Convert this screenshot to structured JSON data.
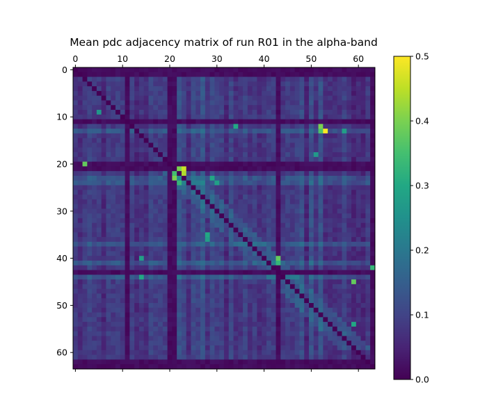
{
  "chart_data": {
    "type": "heatmap",
    "title": "Mean pdc adjacency matrix of run R01 in the alpha-band",
    "xlabel": "",
    "ylabel": "",
    "n_channels": 64,
    "x_ticks": [
      0,
      10,
      20,
      30,
      40,
      50,
      60
    ],
    "y_ticks": [
      0,
      10,
      20,
      30,
      40,
      50,
      60
    ],
    "x_tick_labels": [
      "0",
      "10",
      "20",
      "30",
      "40",
      "50",
      "60"
    ],
    "y_tick_labels": [
      "0",
      "10",
      "20",
      "30",
      "40",
      "50",
      "60"
    ],
    "x_axis_position": "top",
    "colormap": "viridis",
    "colorbar": {
      "vmin": 0.0,
      "vmax": 0.5,
      "ticks": [
        0.0,
        0.1,
        0.2,
        0.3,
        0.4,
        0.5
      ],
      "tick_labels": [
        "0.0",
        "0.1",
        "0.2",
        "0.3",
        "0.4",
        "0.5"
      ],
      "position": "right"
    },
    "diagonal_value": 0.0,
    "dark_rows": [
      0,
      1,
      11,
      20,
      21,
      43,
      62,
      63
    ],
    "dark_columns": [
      11,
      20,
      21,
      43,
      63
    ],
    "bright_rows": [
      13,
      20,
      23,
      24,
      37,
      41,
      44
    ],
    "bright_columns": [
      16,
      22,
      23,
      25,
      27,
      29,
      31,
      33,
      47,
      48,
      50,
      52
    ],
    "hotspots": [
      {
        "row": 13,
        "col": 53,
        "value": 0.5
      },
      {
        "row": 12,
        "col": 52,
        "value": 0.4
      },
      {
        "row": 13,
        "col": 52,
        "value": 0.36
      },
      {
        "row": 21,
        "col": 23,
        "value": 0.46
      },
      {
        "row": 22,
        "col": 23,
        "value": 0.44
      },
      {
        "row": 21,
        "col": 22,
        "value": 0.4
      },
      {
        "row": 23,
        "col": 21,
        "value": 0.4
      },
      {
        "row": 22,
        "col": 21,
        "value": 0.35
      },
      {
        "row": 24,
        "col": 22,
        "value": 0.33
      },
      {
        "row": 20,
        "col": 2,
        "value": 0.38
      },
      {
        "row": 40,
        "col": 43,
        "value": 0.38
      },
      {
        "row": 41,
        "col": 43,
        "value": 0.33
      },
      {
        "row": 45,
        "col": 59,
        "value": 0.38
      },
      {
        "row": 42,
        "col": 63,
        "value": 0.33
      },
      {
        "row": 9,
        "col": 5,
        "value": 0.26
      },
      {
        "row": 35,
        "col": 28,
        "value": 0.3
      },
      {
        "row": 36,
        "col": 28,
        "value": 0.28
      },
      {
        "row": 44,
        "col": 14,
        "value": 0.3
      },
      {
        "row": 40,
        "col": 14,
        "value": 0.28
      },
      {
        "row": 54,
        "col": 59,
        "value": 0.3
      },
      {
        "row": 12,
        "col": 34,
        "value": 0.3
      },
      {
        "row": 23,
        "col": 29,
        "value": 0.3
      },
      {
        "row": 24,
        "col": 30,
        "value": 0.28
      },
      {
        "row": 13,
        "col": 57,
        "value": 0.28
      },
      {
        "row": 18,
        "col": 51,
        "value": 0.27
      }
    ]
  }
}
